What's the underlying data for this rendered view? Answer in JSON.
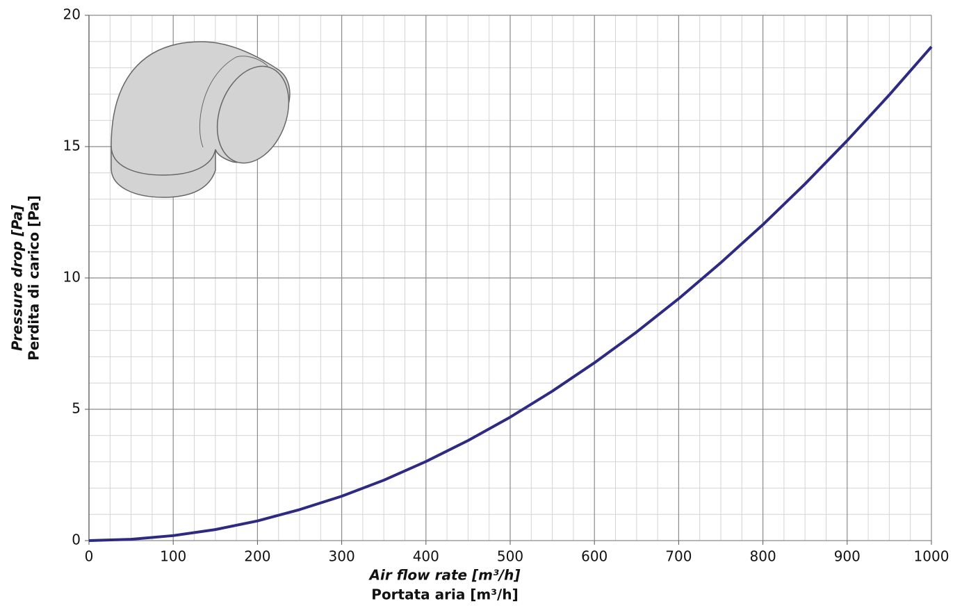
{
  "chart_data": {
    "type": "line",
    "x_label": [
      "Air flow rate [m³/h]",
      "Portata aria [m³/h]"
    ],
    "y_label": [
      "Pressure drop [Pa]",
      "Perdita di carico [Pa]"
    ],
    "x": [
      0,
      50,
      100,
      150,
      200,
      250,
      300,
      350,
      400,
      450,
      500,
      550,
      600,
      650,
      700,
      750,
      800,
      850,
      900,
      950,
      1000
    ],
    "values": [
      0,
      0.05,
      0.19,
      0.42,
      0.75,
      1.18,
      1.69,
      2.3,
      3.01,
      3.81,
      4.7,
      5.69,
      6.77,
      7.94,
      9.21,
      10.58,
      12.03,
      13.58,
      15.23,
      16.97,
      18.8
    ],
    "color": "#2e2a82",
    "xlim": [
      0,
      1000
    ],
    "xticks": [
      0,
      100,
      200,
      300,
      400,
      500,
      600,
      700,
      800,
      900,
      1000
    ],
    "ylim": [
      0,
      20
    ],
    "yticks": [
      0,
      5,
      10,
      15,
      20
    ],
    "grid": true,
    "minor_grid": {
      "x": 4,
      "y": 5
    }
  }
}
